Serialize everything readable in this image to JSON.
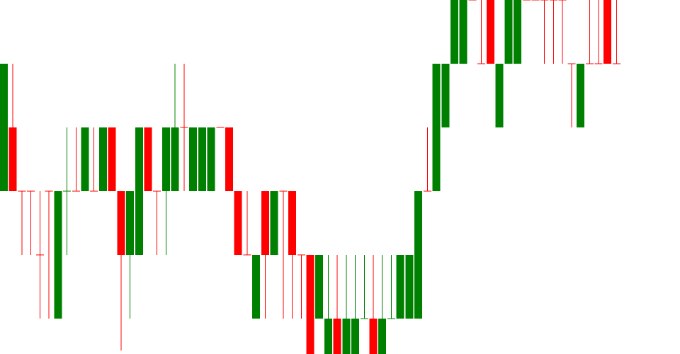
{
  "colors": {
    "up": "#008000",
    "down": "#ff0000",
    "background": "#ffffff"
  },
  "chart_data": {
    "type": "candlestick",
    "title": "",
    "xlabel": "",
    "ylabel": "",
    "grid": false,
    "legend": "none",
    "ylim": [
      0,
      5.555
    ],
    "price_levels": [
      0,
      1,
      2,
      3,
      4,
      5
    ],
    "candles": [
      {
        "dir": "up",
        "open": 2,
        "close": 4,
        "high": 4,
        "low": 2
      },
      {
        "dir": "down",
        "open": 3,
        "close": 2,
        "high": 4,
        "low": 2
      },
      {
        "dir": "down",
        "open": 2,
        "close": 2,
        "high": 2,
        "low": 1
      },
      {
        "dir": "down",
        "open": 2,
        "close": 2,
        "high": 2,
        "low": 1
      },
      {
        "dir": "down",
        "open": 1,
        "close": 1,
        "high": 2,
        "low": 0
      },
      {
        "dir": "down",
        "open": 2,
        "close": 2,
        "high": 2,
        "low": 0
      },
      {
        "dir": "up",
        "open": 0,
        "close": 2,
        "high": 2,
        "low": 0
      },
      {
        "dir": "up",
        "open": 2,
        "close": 2,
        "high": 3,
        "low": 1
      },
      {
        "dir": "down",
        "open": 2,
        "close": 2,
        "high": 3,
        "low": 2
      },
      {
        "dir": "up",
        "open": 2,
        "close": 3,
        "high": 3,
        "low": 2
      },
      {
        "dir": "down",
        "open": 2,
        "close": 2,
        "high": 3,
        "low": 2
      },
      {
        "dir": "up",
        "open": 2,
        "close": 3,
        "high": 3,
        "low": 2
      },
      {
        "dir": "down",
        "open": 3,
        "close": 2,
        "high": 3,
        "low": 2
      },
      {
        "dir": "down",
        "open": 2,
        "close": 1,
        "high": 2,
        "low": -0.5
      },
      {
        "dir": "up",
        "open": 1,
        "close": 2,
        "high": 2,
        "low": 0
      },
      {
        "dir": "up",
        "open": 1,
        "close": 3,
        "high": 3,
        "low": 1
      },
      {
        "dir": "down",
        "open": 3,
        "close": 2,
        "high": 3,
        "low": 2
      },
      {
        "dir": "down",
        "open": 2,
        "close": 2,
        "high": 2,
        "low": 1
      },
      {
        "dir": "up",
        "open": 2,
        "close": 3,
        "high": 3,
        "low": 1
      },
      {
        "dir": "up",
        "open": 2,
        "close": 3,
        "high": 4,
        "low": 2
      },
      {
        "dir": "down",
        "open": 3,
        "close": 3,
        "high": 4,
        "low": 2
      },
      {
        "dir": "up",
        "open": 2,
        "close": 3,
        "high": 3,
        "low": 2
      },
      {
        "dir": "up",
        "open": 2,
        "close": 3,
        "high": 3,
        "low": 2
      },
      {
        "dir": "up",
        "open": 2,
        "close": 3,
        "high": 3,
        "low": 2
      },
      {
        "dir": "down",
        "open": 3,
        "close": 3,
        "high": 3,
        "low": 3
      },
      {
        "dir": "down",
        "open": 3,
        "close": 2,
        "high": 3,
        "low": 2
      },
      {
        "dir": "down",
        "open": 2,
        "close": 1,
        "high": 2,
        "low": 1
      },
      {
        "dir": "down",
        "open": 1,
        "close": 1,
        "high": 2,
        "low": 1
      },
      {
        "dir": "up",
        "open": 0,
        "close": 1,
        "high": 1,
        "low": 0
      },
      {
        "dir": "down",
        "open": 2,
        "close": 1,
        "high": 2,
        "low": 0
      },
      {
        "dir": "up",
        "open": 1,
        "close": 2,
        "high": 2,
        "low": 1
      },
      {
        "dir": "down",
        "open": 2,
        "close": 2,
        "high": 2,
        "low": 0
      },
      {
        "dir": "down",
        "open": 2,
        "close": 1,
        "high": 2,
        "low": 0
      },
      {
        "dir": "down",
        "open": 1,
        "close": 1,
        "high": 1,
        "low": 0
      },
      {
        "dir": "down",
        "open": 1,
        "close": -0.6,
        "high": 1,
        "low": -0.6
      },
      {
        "dir": "up",
        "open": 0,
        "close": 1,
        "high": 1,
        "low": 0
      },
      {
        "dir": "up",
        "open": -0.6,
        "close": 0,
        "high": 1,
        "low": -0.6
      },
      {
        "dir": "down",
        "open": 0,
        "close": -0.6,
        "high": 1,
        "low": -0.6
      },
      {
        "dir": "up",
        "open": -0.6,
        "close": 0,
        "high": 1,
        "low": -0.6
      },
      {
        "dir": "up",
        "open": -0.6,
        "close": 0,
        "high": 1,
        "low": -0.6
      },
      {
        "dir": "up",
        "open": 0,
        "close": 0,
        "high": 1,
        "low": 0
      },
      {
        "dir": "down",
        "open": 0,
        "close": -0.6,
        "high": 1,
        "low": -0.6
      },
      {
        "dir": "up",
        "open": -0.6,
        "close": 0,
        "high": 1,
        "low": -0.6
      },
      {
        "dir": "up",
        "open": 0,
        "close": 0,
        "high": 1,
        "low": 0
      },
      {
        "dir": "up",
        "open": 0,
        "close": 1,
        "high": 1,
        "low": 0
      },
      {
        "dir": "up",
        "open": 0,
        "close": 1,
        "high": 1,
        "low": 0
      },
      {
        "dir": "up",
        "open": 0,
        "close": 2,
        "high": 2,
        "low": 0
      },
      {
        "dir": "down",
        "open": 2,
        "close": 2,
        "high": 3,
        "low": 2
      },
      {
        "dir": "up",
        "open": 2,
        "close": 4,
        "high": 4,
        "low": 2
      },
      {
        "dir": "up",
        "open": 3,
        "close": 4,
        "high": 4,
        "low": 3
      },
      {
        "dir": "up",
        "open": 4,
        "close": 5.6,
        "high": 5.6,
        "low": 4
      },
      {
        "dir": "up",
        "open": 4,
        "close": 5.6,
        "high": 5.6,
        "low": 4
      },
      {
        "dir": "down",
        "open": 5.6,
        "close": 5.6,
        "high": 5.6,
        "low": 5.6
      },
      {
        "dir": "down",
        "open": 4,
        "close": 4,
        "high": 5.6,
        "low": 4
      },
      {
        "dir": "down",
        "open": 5.6,
        "close": 4,
        "high": 5.6,
        "low": 4
      },
      {
        "dir": "up",
        "open": 3,
        "close": 4,
        "high": 4,
        "low": 3
      },
      {
        "dir": "up",
        "open": 4,
        "close": 5.6,
        "high": 5.6,
        "low": 4
      },
      {
        "dir": "up",
        "open": 4,
        "close": 5.6,
        "high": 5.6,
        "low": 4
      },
      {
        "dir": "down",
        "open": 5.6,
        "close": 5.6,
        "high": 5.6,
        "low": 5.6
      },
      {
        "dir": "down",
        "open": 5.6,
        "close": 5.6,
        "high": 5.6,
        "low": 5.6
      },
      {
        "dir": "down",
        "open": 5.6,
        "close": 5.6,
        "high": 5.6,
        "low": 4
      },
      {
        "dir": "down",
        "open": 5.6,
        "close": 5.6,
        "high": 5.6,
        "low": 4
      },
      {
        "dir": "down",
        "open": 5.5,
        "close": 5.5,
        "high": 5.6,
        "low": 4
      },
      {
        "dir": "down",
        "open": 4,
        "close": 4,
        "high": 4,
        "low": 3
      },
      {
        "dir": "up",
        "open": 3,
        "close": 4,
        "high": 4,
        "low": 3
      },
      {
        "dir": "down",
        "open": 4,
        "close": 4,
        "high": 5.6,
        "low": 4
      },
      {
        "dir": "down",
        "open": 4,
        "close": 4,
        "high": 5.6,
        "low": 4
      },
      {
        "dir": "down",
        "open": 5.6,
        "close": 4,
        "high": 5.6,
        "low": 4
      },
      {
        "dir": "down",
        "open": 4,
        "close": 4,
        "high": 5.6,
        "low": 4
      }
    ]
  }
}
